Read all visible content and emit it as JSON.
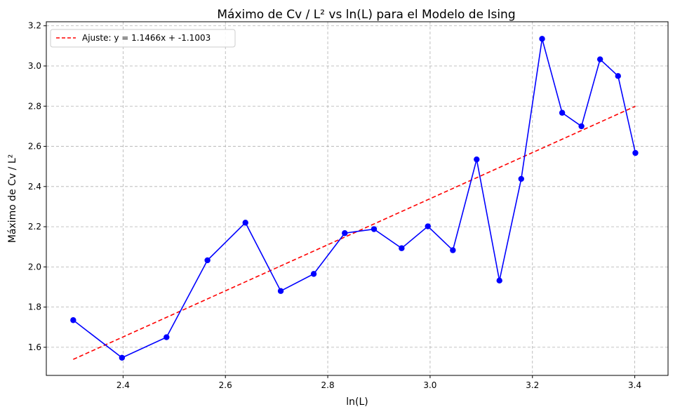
{
  "chart_data": {
    "type": "line",
    "title": "Máximo de Cv / L² vs ln(L) para el Modelo de Ising",
    "xlabel": "ln(L)",
    "ylabel": "Máximo de Cv / L²",
    "xlim": [
      2.25,
      3.465
    ],
    "ylim": [
      1.46,
      3.22
    ],
    "xticks": [
      2.4,
      2.6,
      2.8,
      3.0,
      3.2,
      3.4
    ],
    "xtick_labels": [
      "2.4",
      "2.6",
      "2.8",
      "3.0",
      "3.2",
      "3.4"
    ],
    "yticks": [
      1.6,
      1.8,
      2.0,
      2.2,
      2.4,
      2.6,
      2.8,
      3.0,
      3.2
    ],
    "ytick_labels": [
      "1.6",
      "1.8",
      "2.0",
      "2.2",
      "2.4",
      "2.6",
      "2.8",
      "3.0",
      "3.2"
    ],
    "grid": true,
    "legend_position": "top-left",
    "series": [
      {
        "kind": "line-markers",
        "color": "#0000ff",
        "x": [
          2.3026,
          2.3979,
          2.4849,
          2.5649,
          2.6391,
          2.7081,
          2.7726,
          2.8332,
          2.8904,
          2.9444,
          2.9957,
          3.0445,
          3.091,
          3.1355,
          3.1781,
          3.2189,
          3.2581,
          3.2958,
          3.3322,
          3.3673,
          3.4012
        ],
        "y": [
          1.735,
          1.548,
          1.65,
          2.033,
          2.22,
          1.88,
          1.965,
          2.168,
          2.188,
          2.093,
          2.202,
          2.083,
          2.535,
          1.932,
          2.438,
          3.135,
          2.767,
          2.7,
          3.033,
          2.95,
          2.567
        ]
      },
      {
        "kind": "fit-line",
        "name": "Ajuste: y = 1.1466x + -1.1003",
        "color": "#ff0000",
        "slope": 1.1466,
        "intercept": -1.1003,
        "x": [
          2.3026,
          3.4012
        ]
      }
    ]
  }
}
